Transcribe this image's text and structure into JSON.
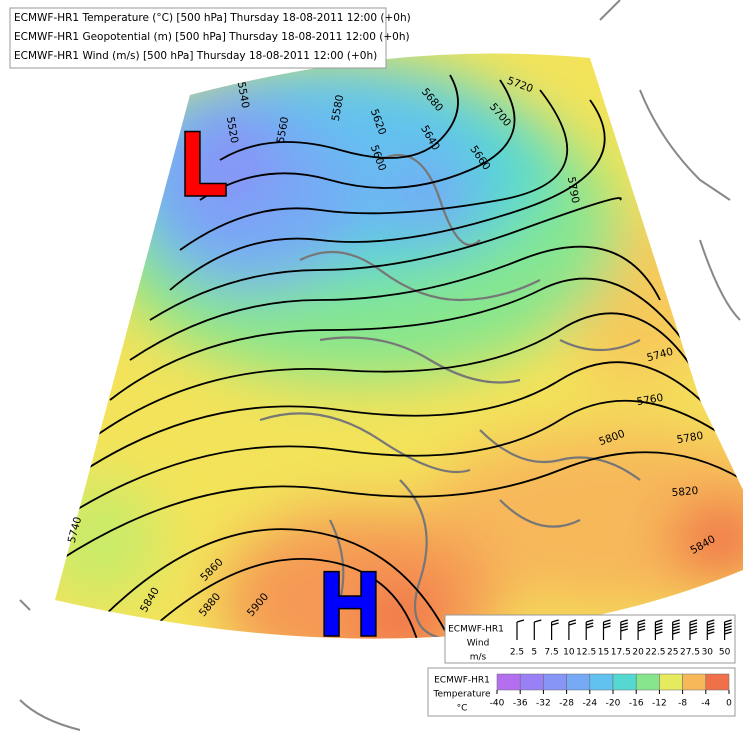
{
  "header": [
    "ECMWF-HR1 Temperature (°C) [500 hPa] Thursday 18-08-2011 12:00 (+0h)",
    "ECMWF-HR1 Geopotential (m) [500 hPa] Thursday 18-08-2011 12:00 (+0h)",
    "ECMWF-HR1 Wind (m/s) [500 hPa] Thursday 18-08-2011 12:00 (+0h)"
  ],
  "pressure_centers": [
    {
      "label": "L",
      "color": "#ff0000"
    },
    {
      "label": "H",
      "color": "#0000ff"
    }
  ],
  "contour_labels": [
    "5540",
    "5520",
    "5560",
    "5580",
    "5600",
    "5620",
    "5640",
    "5660",
    "5680",
    "5700",
    "5720",
    "5790",
    "5740",
    "5760",
    "5780",
    "5800",
    "5820",
    "5840",
    "5740",
    "5840",
    "5860",
    "5880",
    "5900"
  ],
  "wind_legend": {
    "title": "ECMWF-HR1",
    "label": "Wind",
    "unit": "m/s",
    "speeds": [
      2.5,
      5,
      7.5,
      10,
      12.5,
      15,
      17.5,
      20,
      22.5,
      25,
      27.5,
      30,
      50
    ]
  },
  "temperature_legend": {
    "title": "ECMWF-HR1",
    "label": "Temperature",
    "unit": "°C",
    "ticks": [
      -40,
      -36,
      -32,
      -28,
      -24,
      -20,
      -16,
      -12,
      -8,
      -4,
      0
    ],
    "colors": [
      "#b46ef0",
      "#9a80f6",
      "#8795f7",
      "#76aaf5",
      "#62c2ef",
      "#55d8d2",
      "#86e68e",
      "#e6ea5e",
      "#f7b85a",
      "#f0704a"
    ]
  }
}
